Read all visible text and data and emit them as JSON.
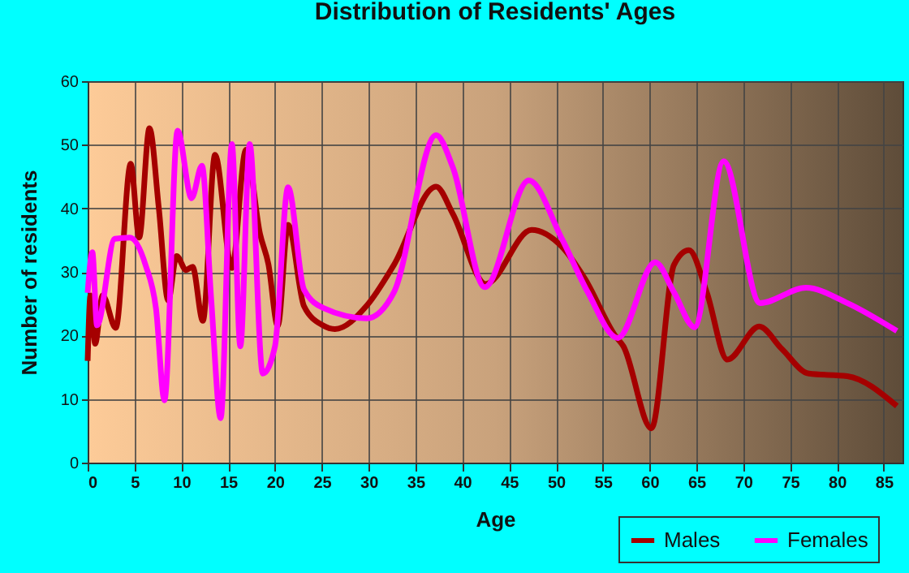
{
  "chart_data": {
    "type": "line",
    "title": "Distribution of Residents' Ages",
    "xlabel": "Age",
    "ylabel": "Number of residents",
    "xlim": [
      0,
      87
    ],
    "xticks": [
      0,
      5,
      10,
      15,
      20,
      25,
      30,
      35,
      40,
      45,
      50,
      55,
      60,
      65,
      70,
      75,
      80,
      85
    ],
    "ylim": [
      0,
      60
    ],
    "yticks": [
      0,
      10,
      20,
      30,
      40,
      50,
      60
    ],
    "grid": true,
    "legend": "bottom right",
    "marker": "none",
    "line_style": "solid",
    "series": [
      {
        "name": "Males",
        "color": "#a50000",
        "x": [
          0,
          0.3,
          0.8,
          1.6,
          3,
          4.6,
          5.5,
          6.6,
          7.6,
          8.6,
          9.5,
          10.5,
          11.2,
          12.3,
          13.6,
          15.4,
          16.9,
          18.4,
          19.3,
          20.3,
          21.4,
          23.1,
          25.1,
          26.4,
          29.8,
          32.7,
          37.2,
          39,
          42.5,
          47.4,
          50.6,
          53.1,
          56.3,
          57.2,
          60.2,
          62.6,
          64.2,
          66.1,
          68.3,
          71.7,
          74.1,
          77,
          81.1,
          86.4
        ],
        "values": [
          16,
          26.3,
          18.7,
          26.3,
          21.2,
          47,
          35.4,
          52.6,
          40,
          25.5,
          32.5,
          30.3,
          30.8,
          22.3,
          48.4,
          30.6,
          49.2,
          36,
          31.2,
          21.5,
          37.4,
          24.6,
          21.6,
          21,
          24.7,
          31.1,
          43.4,
          39.1,
          28.1,
          36.6,
          34,
          28.9,
          20,
          18.3,
          5.4,
          31.1,
          33.4,
          26.8,
          16.2,
          21.4,
          17.9,
          14,
          13.6,
          8.9
        ]
      },
      {
        "name": "Females",
        "color": "#ff00ff",
        "x": [
          0,
          0.5,
          1,
          2.9,
          4.5,
          6.2,
          7.3,
          8.2,
          9.6,
          11.1,
          12.2,
          13.2,
          14.2,
          15.4,
          16.3,
          17.3,
          18.7,
          20,
          21.4,
          23.1,
          25.2,
          29.8,
          32.7,
          37.2,
          39,
          42.4,
          47.1,
          50.6,
          53.4,
          56.6,
          60.6,
          62.6,
          64.8,
          67.9,
          71.8,
          76.7,
          81.1,
          86.4
        ],
        "values": [
          26.7,
          33.1,
          21.6,
          35.2,
          35.4,
          31,
          24.2,
          9.8,
          52.2,
          41.6,
          46.7,
          25.5,
          7,
          50.1,
          18.3,
          50.1,
          14,
          18.3,
          43.3,
          27.2,
          24.3,
          22.7,
          26.8,
          51.5,
          46.4,
          27.6,
          44.4,
          35.3,
          26.8,
          19.6,
          31.5,
          26.8,
          21.3,
          47.4,
          25.1,
          27.5,
          25.1,
          20.7
        ]
      }
    ]
  }
}
